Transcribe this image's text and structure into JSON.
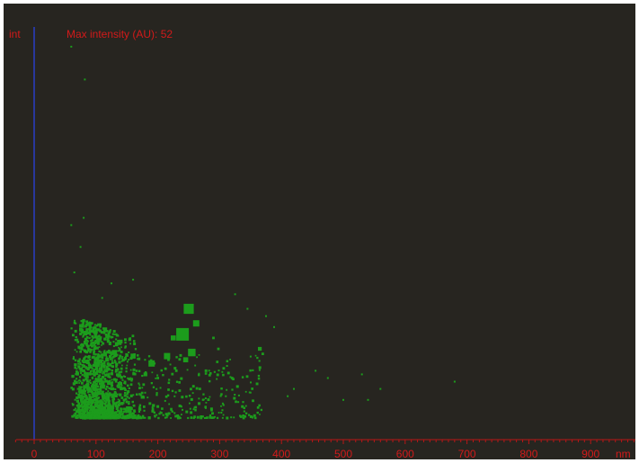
{
  "chart_data": {
    "type": "scatter",
    "title": "Max intensity (AU): 52",
    "ylabel": "int",
    "xlabel": "nm",
    "xlim": [
      -30,
      990
    ],
    "ylim": [
      0,
      52
    ],
    "x_ticks": [
      "0",
      "100",
      "200",
      "300",
      "400",
      "500",
      "600",
      "700",
      "800",
      "900"
    ],
    "x_tick_values": [
      0,
      100,
      200,
      300,
      400,
      500,
      600,
      700,
      800,
      900
    ],
    "minor_tick_step": 10,
    "grid": false,
    "legend": "none",
    "colors": {
      "background": "#272520",
      "points": "#1c9c1c",
      "axis_x": "#b81616",
      "axis_y": "#2a3fd0",
      "text": "#d21a1a"
    },
    "large_points": [
      [
        250,
        15,
        4
      ],
      [
        262,
        13,
        2.5
      ],
      [
        240,
        11.5,
        5
      ],
      [
        225,
        11,
        2
      ],
      [
        255,
        9,
        3
      ],
      [
        245,
        8,
        2
      ],
      [
        215,
        8.5,
        2.5
      ],
      [
        190,
        7.5,
        2.5
      ],
      [
        160,
        8.5,
        2
      ],
      [
        140,
        10.5,
        1.5
      ],
      [
        130,
        9,
        2
      ],
      [
        118,
        8,
        1.5
      ],
      [
        365,
        9.5,
        1.5
      ],
      [
        298,
        9.5,
        1
      ],
      [
        290,
        11,
        1
      ],
      [
        230,
        6.5,
        1
      ],
      [
        200,
        5.5,
        1
      ],
      [
        180,
        6,
        1.5
      ],
      [
        120,
        5,
        1
      ],
      [
        90,
        4,
        1
      ],
      [
        320,
        5.5,
        1
      ],
      [
        268,
        4,
        1
      ]
    ],
    "sparse_points": [
      [
        82,
        46.5
      ],
      [
        60,
        51
      ],
      [
        60,
        26.5
      ],
      [
        80,
        27.5
      ],
      [
        75,
        23.5
      ],
      [
        65,
        20
      ],
      [
        160,
        19
      ],
      [
        125,
        18.5
      ],
      [
        110,
        16.5
      ],
      [
        325,
        17
      ],
      [
        345,
        15
      ],
      [
        375,
        14
      ],
      [
        388,
        12.5
      ],
      [
        455,
        6.5
      ],
      [
        475,
        5.5
      ],
      [
        530,
        6
      ],
      [
        540,
        2.5
      ],
      [
        420,
        4
      ],
      [
        410,
        3
      ],
      [
        500,
        2.5
      ],
      [
        560,
        4
      ],
      [
        680,
        5
      ],
      [
        310,
        3
      ],
      [
        330,
        2.2
      ],
      [
        350,
        3.5
      ],
      [
        305,
        2
      ]
    ]
  }
}
